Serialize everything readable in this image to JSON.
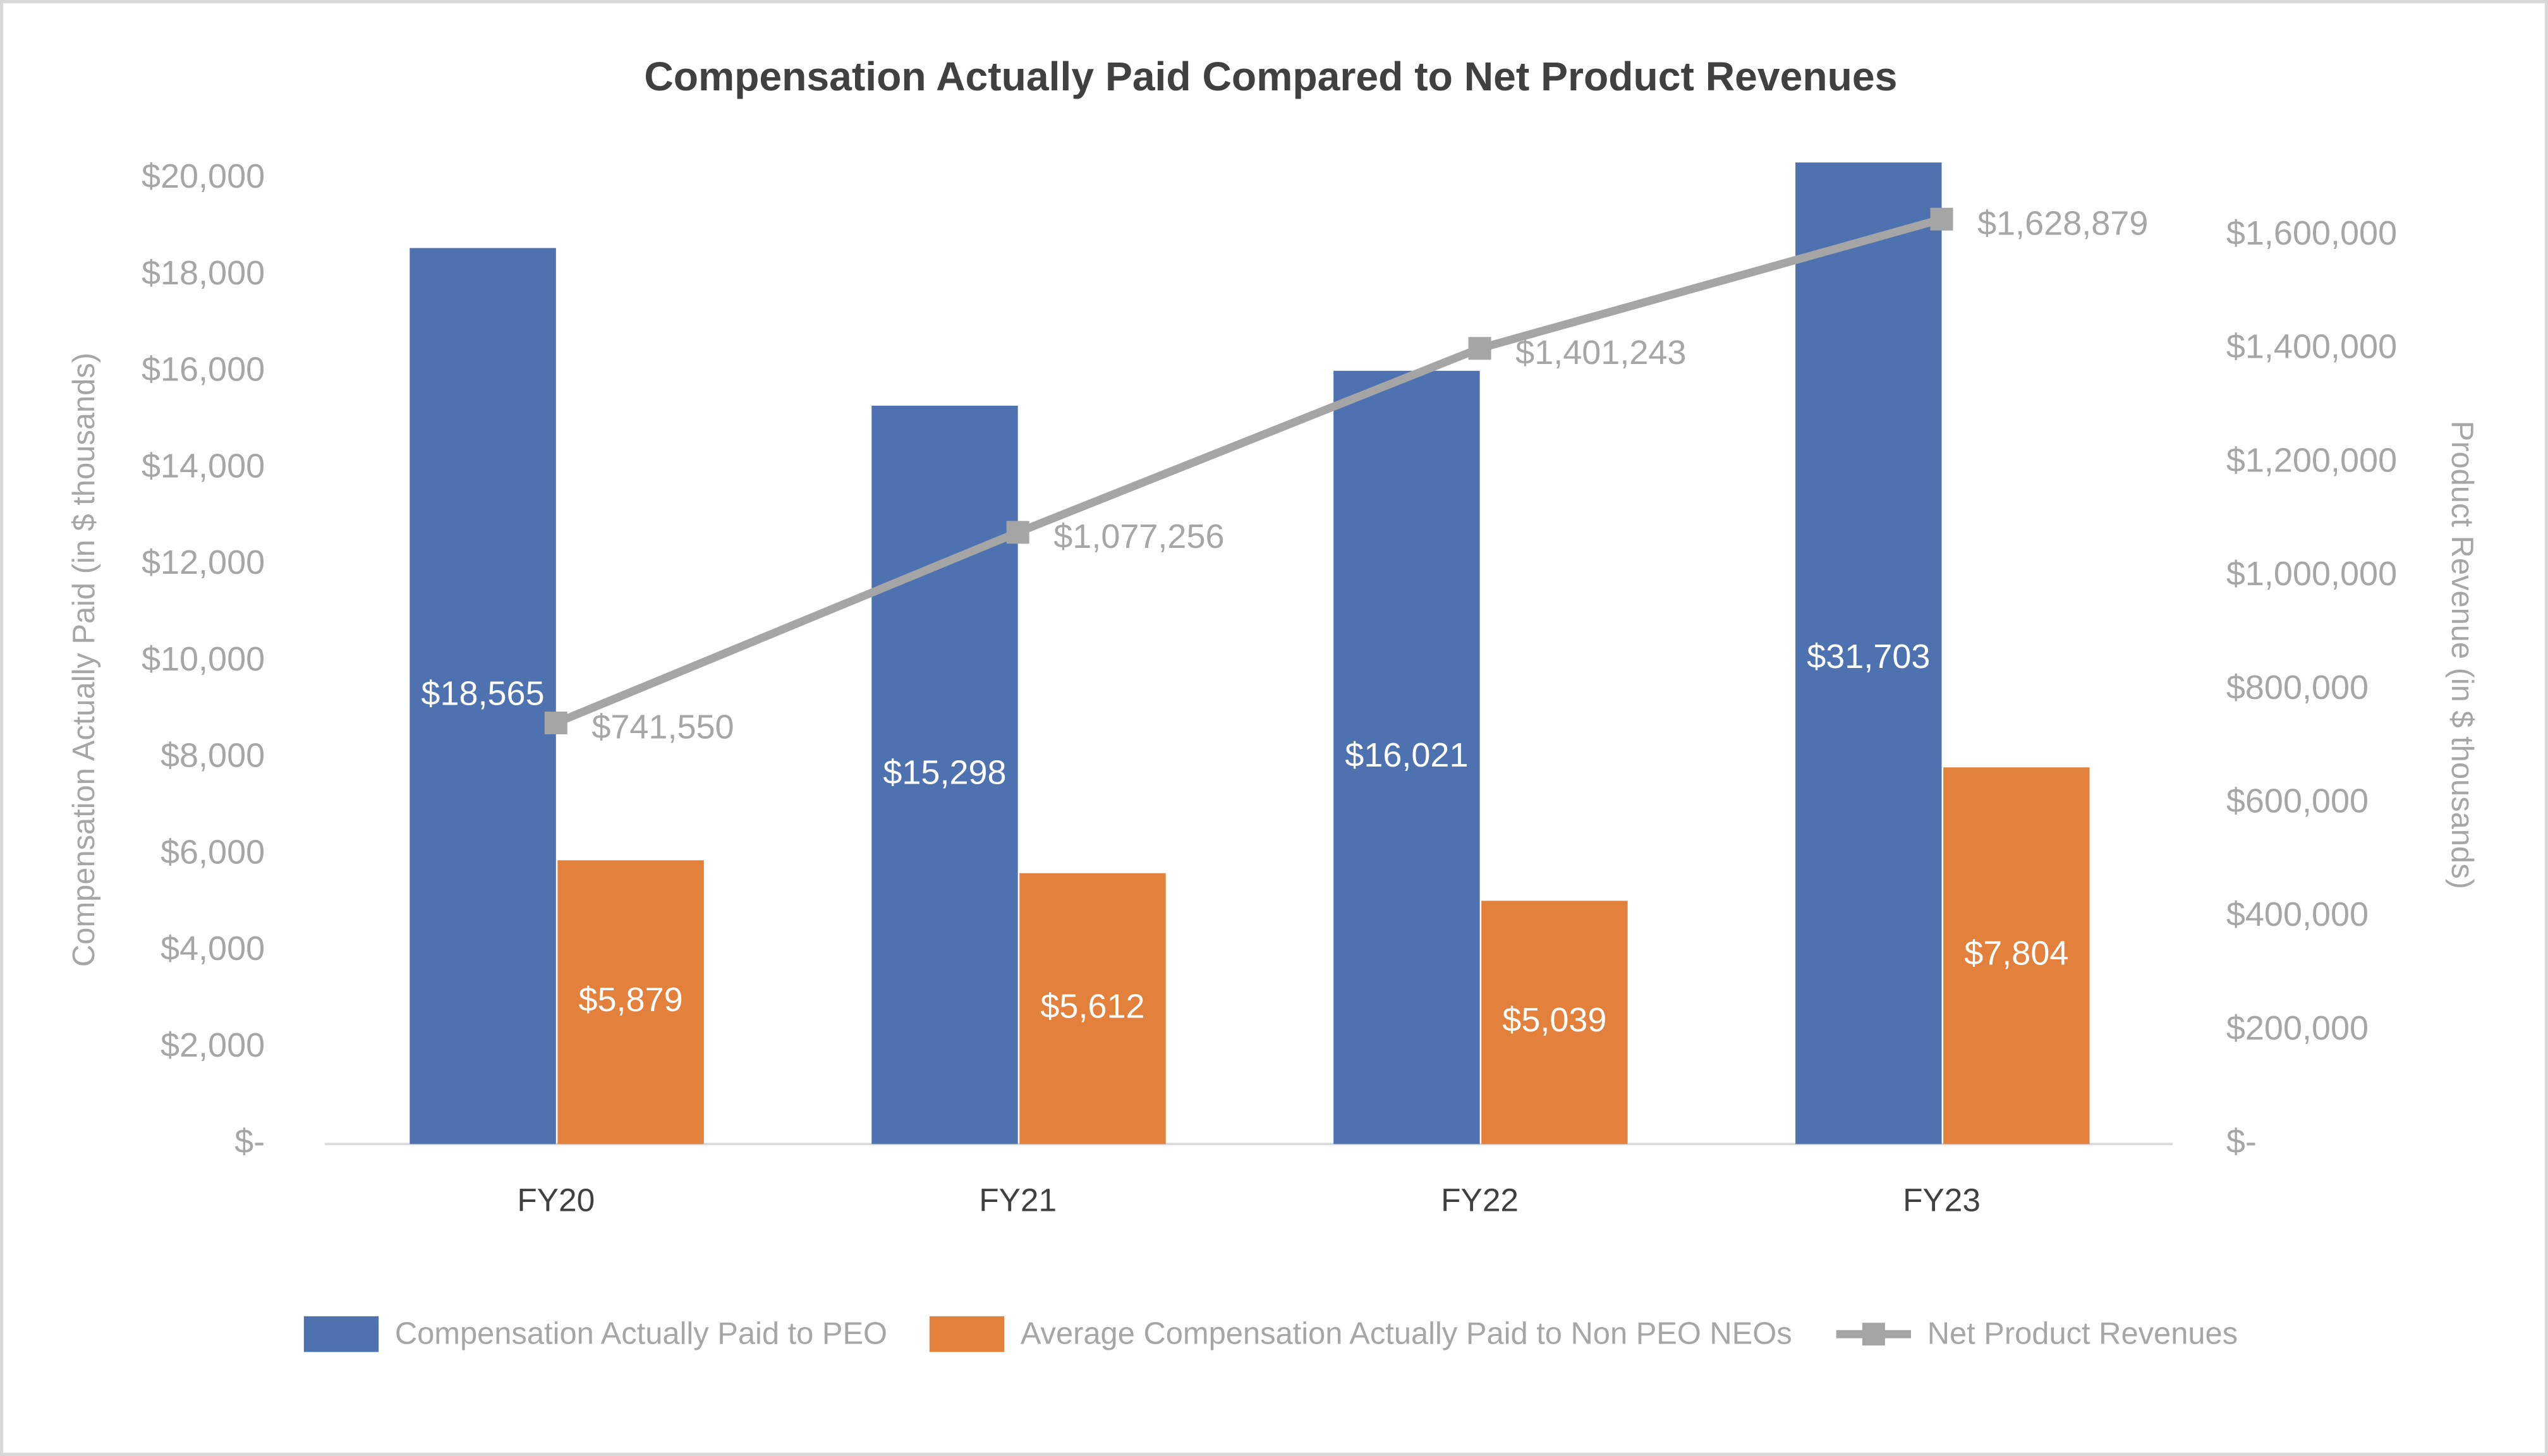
{
  "chart_data": {
    "type": "bar",
    "title": "Compensation Actually Paid Compared to Net Product Revenues",
    "y_label": "Compensation Actually Paid (in $ thousands)",
    "y2_label": "Product Revenue (in $ thousands)",
    "categories": [
      "FY20",
      "FY21",
      "FY22",
      "FY23"
    ],
    "series": [
      {
        "name": "Compensation Actually Paid to PEO",
        "type": "bar",
        "color": "#4e72b0",
        "values": [
          18565,
          15298,
          16021,
          31703
        ],
        "value_labels": [
          "$18,565",
          "$15,298",
          "$16,021",
          "$31,703"
        ]
      },
      {
        "name": "Average Compensation Actually Paid to Non PEO NEOs",
        "type": "bar",
        "color": "#e3803c",
        "values": [
          5879,
          5612,
          5039,
          7804
        ],
        "value_labels": [
          "$5,879",
          "$5,612",
          "$5,039",
          "$7,804"
        ]
      },
      {
        "name": "Net Product Revenues",
        "type": "line",
        "axis": "y2",
        "color": "#a5a5a5",
        "values": [
          741550,
          1077256,
          1401243,
          1628879
        ],
        "value_labels": [
          "$741,550",
          "$1,077,256",
          "$1,401,243",
          "$1,628,879"
        ]
      }
    ],
    "ylim": [
      0,
      20000
    ],
    "yticks": [
      {
        "value": 0,
        "label": "$-"
      },
      {
        "value": 2000,
        "label": "$2,000"
      },
      {
        "value": 4000,
        "label": "$4,000"
      },
      {
        "value": 6000,
        "label": "$6,000"
      },
      {
        "value": 8000,
        "label": "$8,000"
      },
      {
        "value": 10000,
        "label": "$10,000"
      },
      {
        "value": 12000,
        "label": "$12,000"
      },
      {
        "value": 14000,
        "label": "$14,000"
      },
      {
        "value": 16000,
        "label": "$16,000"
      },
      {
        "value": 18000,
        "label": "$18,000"
      },
      {
        "value": 20000,
        "label": "$20,000"
      }
    ],
    "y2lim": [
      0,
      1700000
    ],
    "y2ticks": [
      {
        "value": 0,
        "label": "$-"
      },
      {
        "value": 200000,
        "label": "$200,000"
      },
      {
        "value": 400000,
        "label": "$400,000"
      },
      {
        "value": 600000,
        "label": "$600,000"
      },
      {
        "value": 800000,
        "label": "$800,000"
      },
      {
        "value": 1000000,
        "label": "$1,000,000"
      },
      {
        "value": 1200000,
        "label": "$1,200,000"
      },
      {
        "value": 1400000,
        "label": "$1,400,000"
      },
      {
        "value": 1600000,
        "label": "$1,600,000"
      }
    ],
    "grid": false,
    "legend": "bottom"
  }
}
